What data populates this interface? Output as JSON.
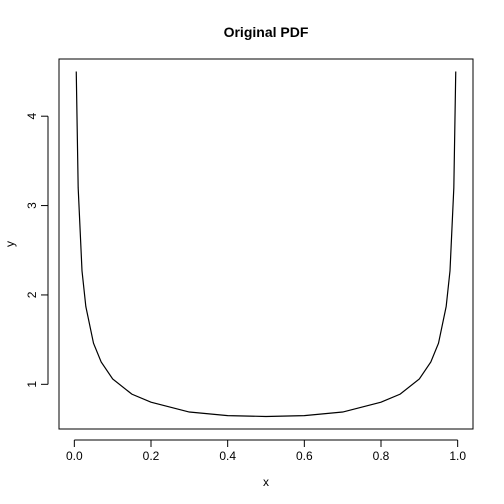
{
  "chart_data": {
    "type": "line",
    "title": "Original PDF",
    "xlabel": "x",
    "ylabel": "y",
    "xlim": [
      -0.04,
      1.04
    ],
    "ylim": [
      0.5,
      4.64
    ],
    "x_ticks": [
      0.0,
      0.2,
      0.4,
      0.6,
      0.8,
      1.0
    ],
    "x_tick_labels": [
      "0.0",
      "0.2",
      "0.4",
      "0.6",
      "0.8",
      "1.0"
    ],
    "y_ticks": [
      1,
      2,
      3,
      4
    ],
    "y_tick_labels": [
      "1",
      "2",
      "3",
      "4"
    ],
    "grid": false,
    "legend": "none",
    "series": [
      {
        "color": "#000000",
        "x": [
          0.005,
          0.01,
          0.02,
          0.03,
          0.05,
          0.07,
          0.1,
          0.15,
          0.2,
          0.3,
          0.4,
          0.5,
          0.6,
          0.7,
          0.8,
          0.85,
          0.9,
          0.93,
          0.95,
          0.97,
          0.98,
          0.99,
          0.995
        ],
        "y": [
          4.5,
          3.2,
          2.27,
          1.87,
          1.46,
          1.25,
          1.06,
          0.89,
          0.8,
          0.69,
          0.65,
          0.64,
          0.65,
          0.69,
          0.8,
          0.89,
          1.06,
          1.25,
          1.46,
          1.87,
          2.27,
          3.2,
          4.5
        ]
      }
    ]
  }
}
